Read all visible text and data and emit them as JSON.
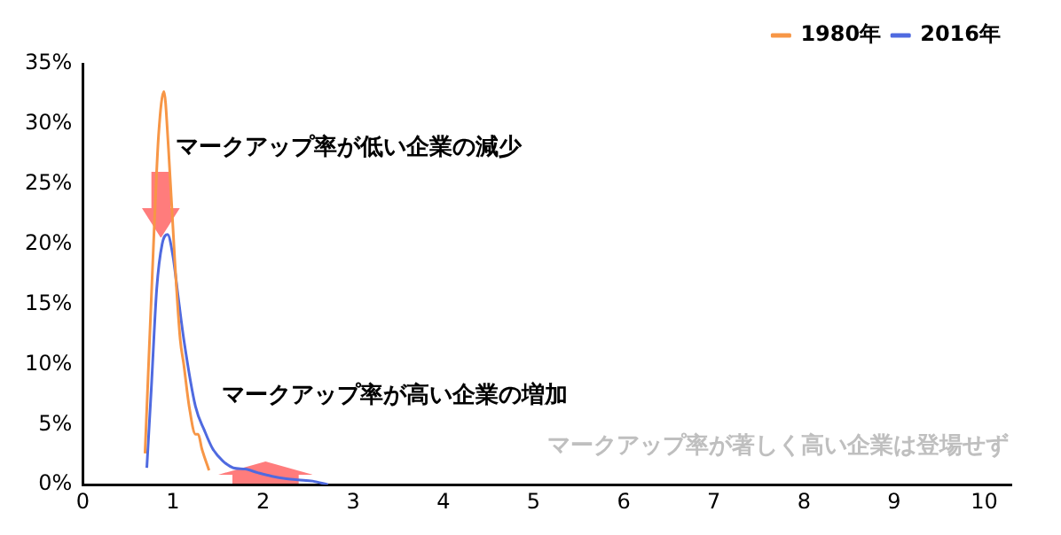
{
  "chart_data": {
    "type": "line",
    "xlim": [
      0,
      10.3
    ],
    "xticks": [
      0,
      1,
      2,
      3,
      4,
      5,
      6,
      7,
      8,
      9,
      10
    ],
    "ylim": [
      0,
      35
    ],
    "yticks": [
      {
        "value": 0,
        "label": "0%"
      },
      {
        "value": 5,
        "label": "5%"
      },
      {
        "value": 10,
        "label": "10%"
      },
      {
        "value": 15,
        "label": "15%"
      },
      {
        "value": 20,
        "label": "20%"
      },
      {
        "value": 25,
        "label": "25%"
      },
      {
        "value": 30,
        "label": "30%"
      },
      {
        "value": 35,
        "label": "35%"
      }
    ],
    "grid": false,
    "legend": "top right",
    "marker": "none",
    "line_style": "solid",
    "series": [
      {
        "name": "1980年",
        "color": "#f79646",
        "x": [
          0.69,
          0.79,
          0.84,
          0.9,
          0.95,
          1.02,
          1.08,
          1.12,
          1.18,
          1.25,
          1.28,
          1.32,
          1.4
        ],
        "values": [
          2.6,
          21,
          29,
          32.7,
          28,
          18.7,
          12.1,
          10,
          6.5,
          4.2,
          4.2,
          3,
          1.2
        ]
      },
      {
        "name": "2016年",
        "color": "#4f6ae0",
        "x": [
          0.71,
          0.76,
          0.82,
          0.88,
          0.94,
          1.0,
          1.06,
          1.12,
          1.25,
          1.35,
          1.44,
          1.55,
          1.67,
          1.8,
          1.94,
          2.1,
          2.26,
          2.39,
          2.55,
          2.72
        ],
        "values": [
          1.4,
          8,
          16.3,
          20,
          20.8,
          19,
          15.5,
          12.1,
          6.5,
          4.5,
          3,
          2,
          1.4,
          1.3,
          1,
          0.7,
          0.5,
          0.4,
          0.3,
          0
        ]
      }
    ],
    "annotations": [
      "マークアップ率が低い企業の減少",
      "マークアップ率が高い企業の増加",
      "マークアップ率が著しく高い企業は登場せず"
    ]
  }
}
